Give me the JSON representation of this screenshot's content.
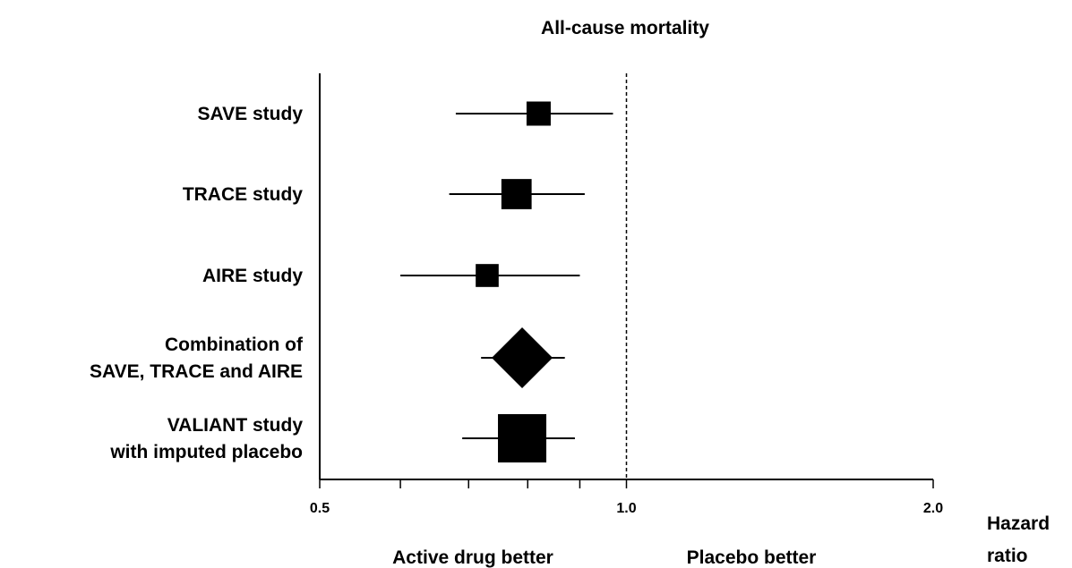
{
  "chart_data": {
    "type": "forest",
    "title": "All-cause mortality",
    "x_scale": "log",
    "xlim": [
      0.5,
      2.0
    ],
    "xticks": [
      {
        "value": 0.5,
        "label": "0.5"
      },
      {
        "value": 1.0,
        "label": "1.0"
      },
      {
        "value": 2.0,
        "label": "2.0"
      }
    ],
    "minor_ticks": [
      0.6,
      0.7,
      0.8,
      0.9
    ],
    "reference_line": 1.0,
    "xlabel": [
      "Hazard",
      "ratio"
    ],
    "left_annotation": "Active drug better",
    "right_annotation": "Placebo better",
    "studies": [
      {
        "label": [
          "SAVE study"
        ],
        "estimate": 0.82,
        "lower": 0.68,
        "upper": 0.97,
        "marker": "square",
        "weight": 1.0
      },
      {
        "label": [
          "TRACE study"
        ],
        "estimate": 0.78,
        "lower": 0.67,
        "upper": 0.91,
        "marker": "square",
        "weight": 1.25
      },
      {
        "label": [
          "AIRE study"
        ],
        "estimate": 0.73,
        "lower": 0.6,
        "upper": 0.9,
        "marker": "square",
        "weight": 0.95
      },
      {
        "label": [
          "Combination of",
          "SAVE, TRACE and AIRE"
        ],
        "estimate": 0.79,
        "lower": 0.72,
        "upper": 0.87,
        "marker": "diamond",
        "weight": 1.0
      },
      {
        "label": [
          "VALIANT study",
          "with imputed placebo"
        ],
        "estimate": 0.79,
        "lower": 0.69,
        "upper": 0.89,
        "marker": "square",
        "weight": 2.0
      }
    ]
  }
}
